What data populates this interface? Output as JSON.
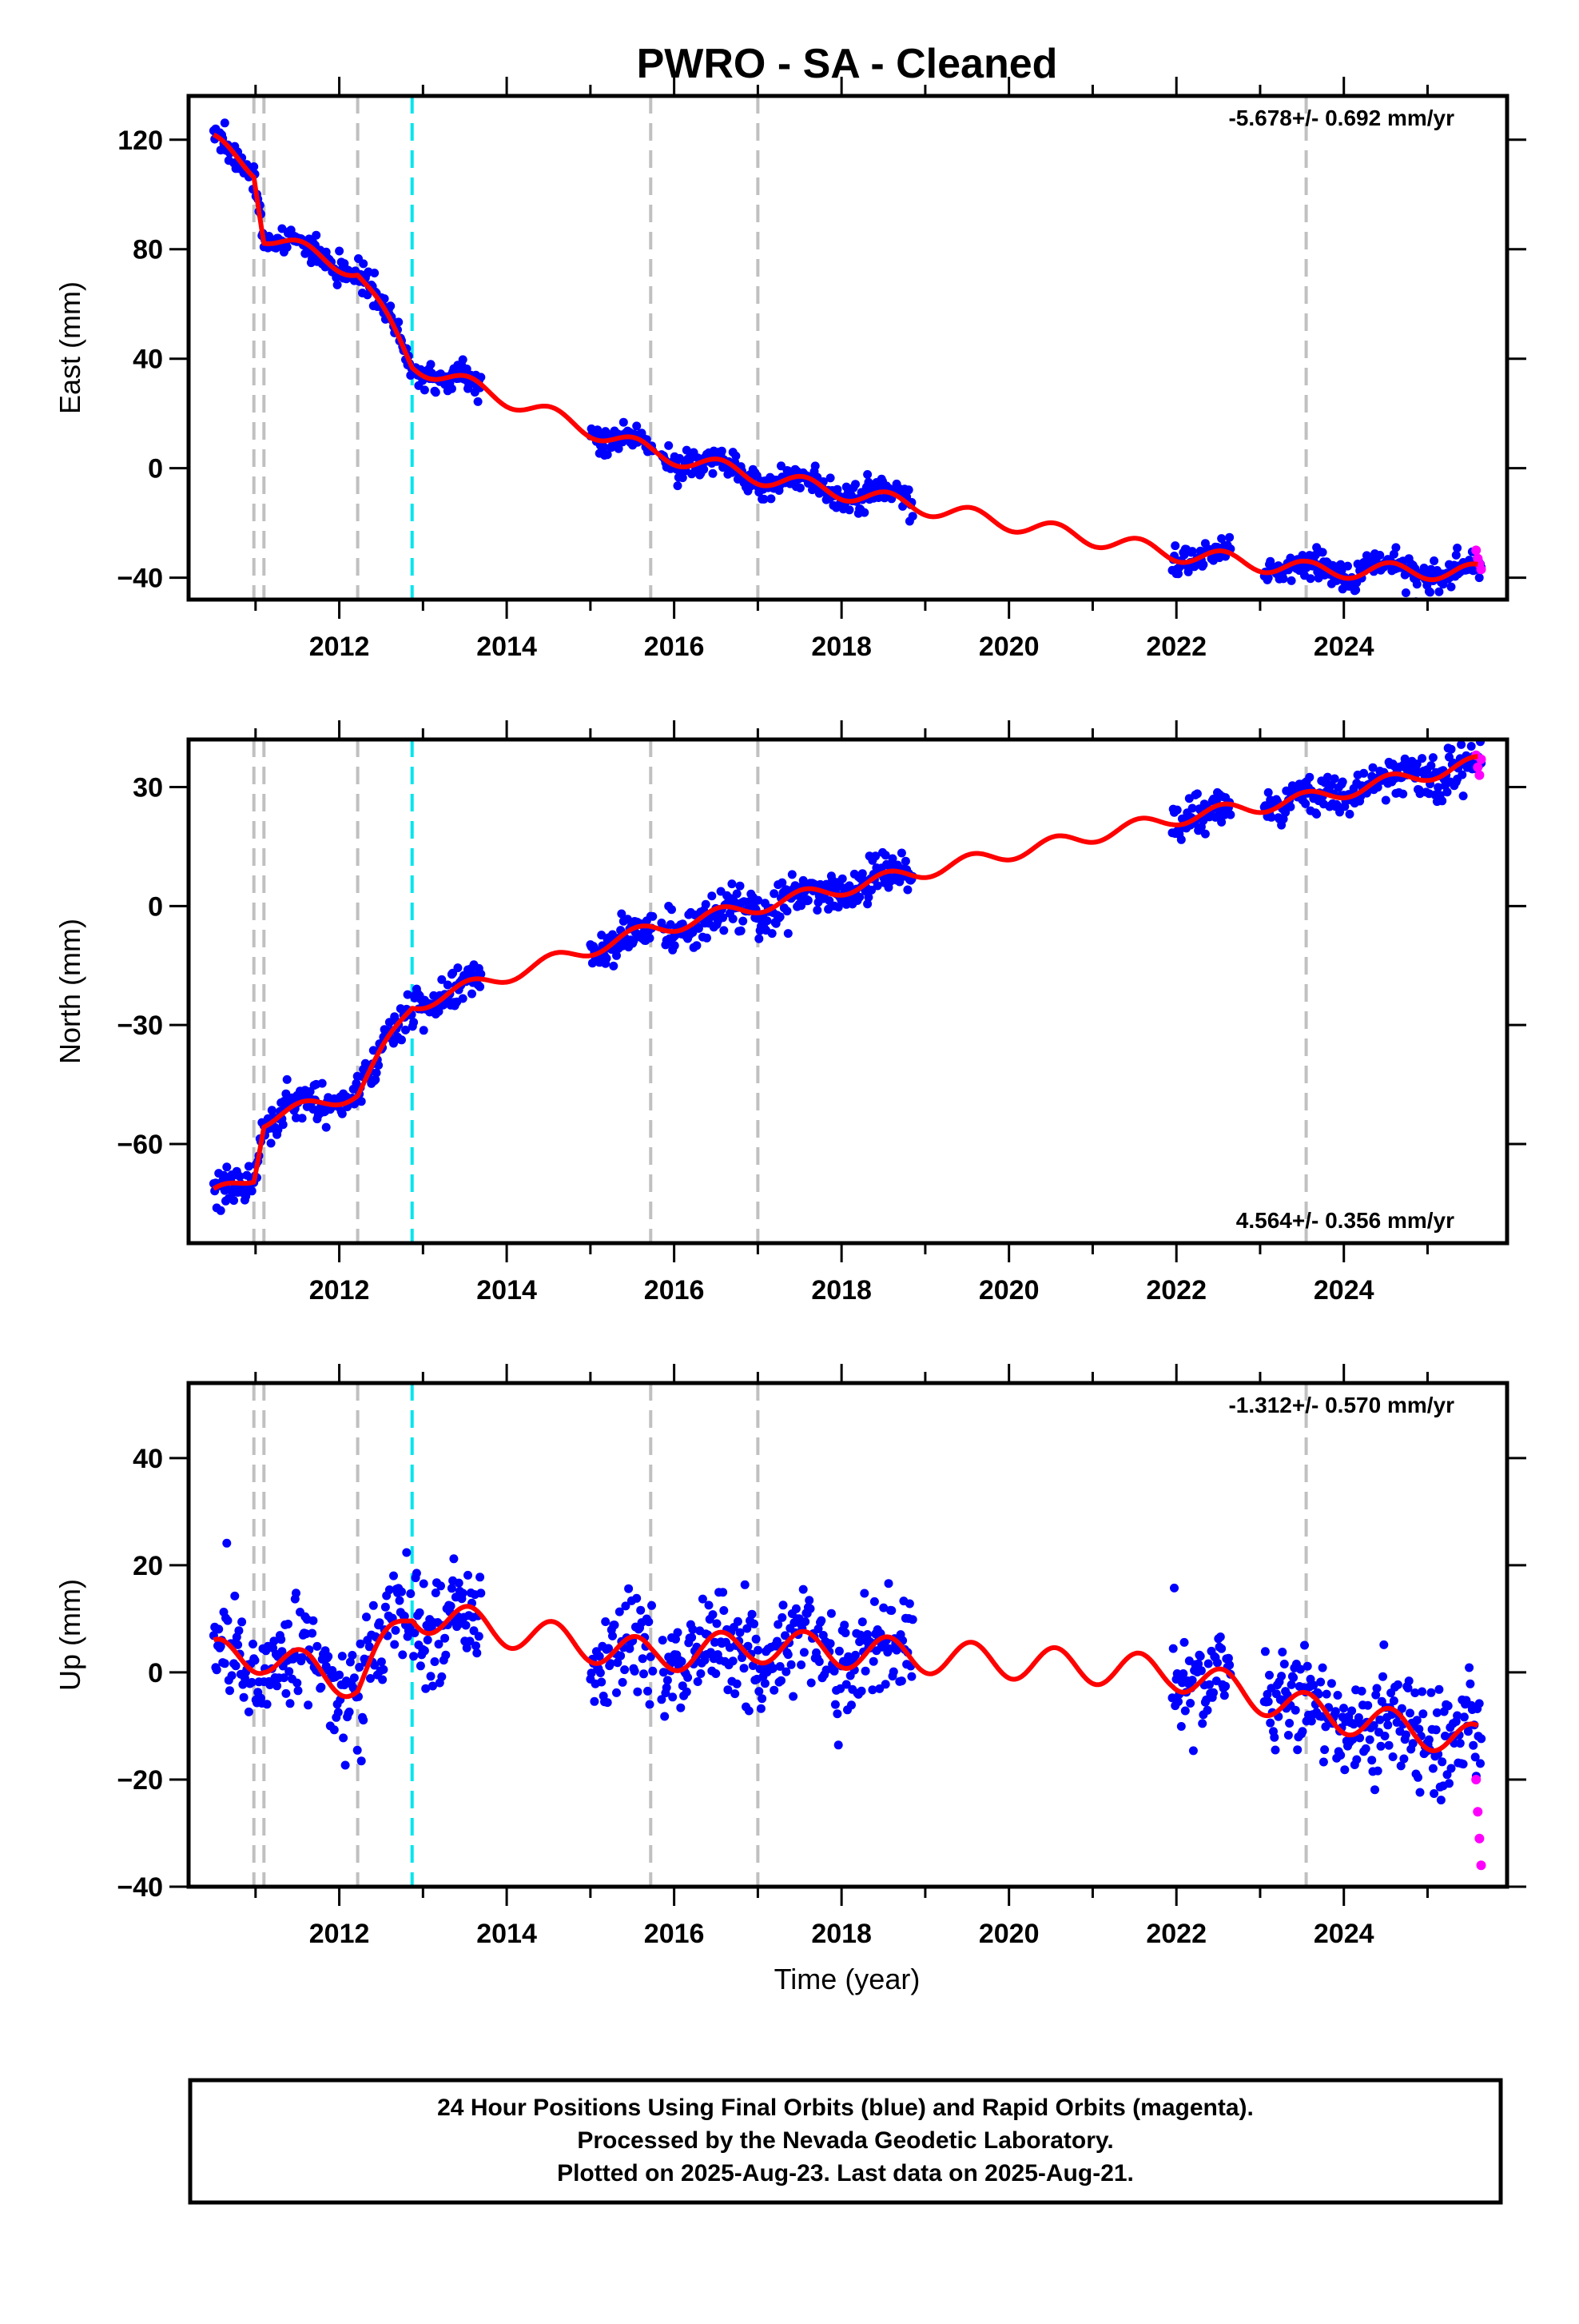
{
  "title": "PWRO  - SA - Cleaned",
  "x_axis_label": "Time (year)",
  "footer": {
    "line1": "24 Hour Positions Using Final Orbits (blue) and Rapid Orbits (magenta).",
    "line2": "Processed by the Nevada Geodetic Laboratory.",
    "line3": "Plotted on 2025-Aug-23. Last data on 2025-Aug-21."
  },
  "colors": {
    "final_orbits": "#0000ff",
    "rapid_orbits": "#ff00ff",
    "model": "#ff0000",
    "equipment_change": "#c0c0c0",
    "earthquake_step": "#00e5ee"
  },
  "chart_data": [
    {
      "type": "scatter",
      "ylabel": "East (mm)",
      "rate_text": "-5.678+/- 0.692 mm/yr",
      "xlim": [
        2010.2,
        2025.95
      ],
      "ylim": [
        -48,
        136
      ],
      "x_ticks": [
        2012,
        2014,
        2016,
        2018,
        2020,
        2022,
        2024
      ],
      "y_ticks": [
        120,
        80,
        40,
        0,
        -40
      ],
      "rate_mm_per_yr": -5.678,
      "gray_dashed_lines": [
        2010.98,
        2011.1,
        2012.22,
        2015.72,
        2017.0,
        2023.55
      ],
      "cyan_dashed_lines": [
        2012.87
      ],
      "data_segments": [
        [
          2010.5,
          2013.7
        ],
        [
          2015.0,
          2015.75
        ],
        [
          2015.85,
          2018.85
        ],
        [
          2021.95,
          2022.65
        ],
        [
          2023.05,
          2025.65
        ]
      ],
      "model_knots": [
        [
          2010.5,
          119
        ],
        [
          2010.98,
          109
        ],
        [
          2011.1,
          85
        ],
        [
          2012.22,
          72
        ],
        [
          2012.87,
          38
        ],
        [
          2015.72,
          6
        ],
        [
          2017.0,
          -3
        ],
        [
          2021.95,
          -31
        ],
        [
          2023.55,
          -37
        ],
        [
          2025.6,
          -38
        ]
      ],
      "rapid_values": [
        [
          2025.58,
          -30
        ],
        [
          2025.6,
          -33
        ],
        [
          2025.62,
          -35
        ],
        [
          2025.64,
          -37
        ]
      ]
    },
    {
      "type": "scatter",
      "ylabel": "North (mm)",
      "rate_text": "4.564+/- 0.356 mm/yr",
      "xlim": [
        2010.2,
        2025.95
      ],
      "ylim": [
        -85,
        42
      ],
      "x_ticks": [
        2012,
        2014,
        2016,
        2018,
        2020,
        2022,
        2024
      ],
      "y_ticks": [
        30,
        0,
        -30,
        -60
      ],
      "rate_mm_per_yr": 4.564,
      "gray_dashed_lines": [
        2010.98,
        2011.1,
        2012.22,
        2015.72,
        2017.0,
        2023.55
      ],
      "cyan_dashed_lines": [
        2012.87
      ],
      "data_segments": [
        [
          2010.5,
          2013.7
        ],
        [
          2015.0,
          2015.75
        ],
        [
          2015.85,
          2018.85
        ],
        [
          2021.95,
          2022.65
        ],
        [
          2023.05,
          2025.65
        ]
      ],
      "model_knots": [
        [
          2010.5,
          -73
        ],
        [
          2010.98,
          -68
        ],
        [
          2011.1,
          -54
        ],
        [
          2012.22,
          -47
        ],
        [
          2012.87,
          -25
        ],
        [
          2015.72,
          -6
        ],
        [
          2017.0,
          0
        ],
        [
          2021.95,
          22
        ],
        [
          2023.55,
          27
        ],
        [
          2025.6,
          36
        ]
      ],
      "rapid_values": [
        [
          2025.58,
          38
        ],
        [
          2025.6,
          35
        ],
        [
          2025.62,
          33
        ],
        [
          2025.64,
          37
        ]
      ]
    },
    {
      "type": "scatter",
      "ylabel": "Up (mm)",
      "rate_text": "-1.312+/- 0.570 mm/yr",
      "xlim": [
        2010.2,
        2025.95
      ],
      "ylim": [
        -40,
        54
      ],
      "x_ticks": [
        2012,
        2014,
        2016,
        2018,
        2020,
        2022,
        2024
      ],
      "y_ticks": [
        40,
        20,
        0,
        -20,
        -40
      ],
      "rate_mm_per_yr": -1.312,
      "gray_dashed_lines": [
        2010.98,
        2011.1,
        2012.22,
        2015.72,
        2017.0,
        2023.55
      ],
      "cyan_dashed_lines": [
        2012.87
      ],
      "data_segments": [
        [
          2010.5,
          2013.7
        ],
        [
          2015.0,
          2015.75
        ],
        [
          2015.85,
          2018.85
        ],
        [
          2021.95,
          2022.65
        ],
        [
          2023.05,
          2025.65
        ]
      ],
      "model_knots": [
        [
          2010.5,
          3
        ],
        [
          2010.98,
          3
        ],
        [
          2011.1,
          3
        ],
        [
          2012.22,
          -2
        ],
        [
          2012.87,
          11
        ],
        [
          2015.72,
          3
        ],
        [
          2017.0,
          5
        ],
        [
          2021.95,
          0
        ],
        [
          2023.55,
          -7
        ],
        [
          2025.6,
          -13
        ]
      ],
      "rapid_values": [
        [
          2025.58,
          -20
        ],
        [
          2025.6,
          -26
        ],
        [
          2025.62,
          -31
        ],
        [
          2025.64,
          -36
        ]
      ]
    }
  ]
}
